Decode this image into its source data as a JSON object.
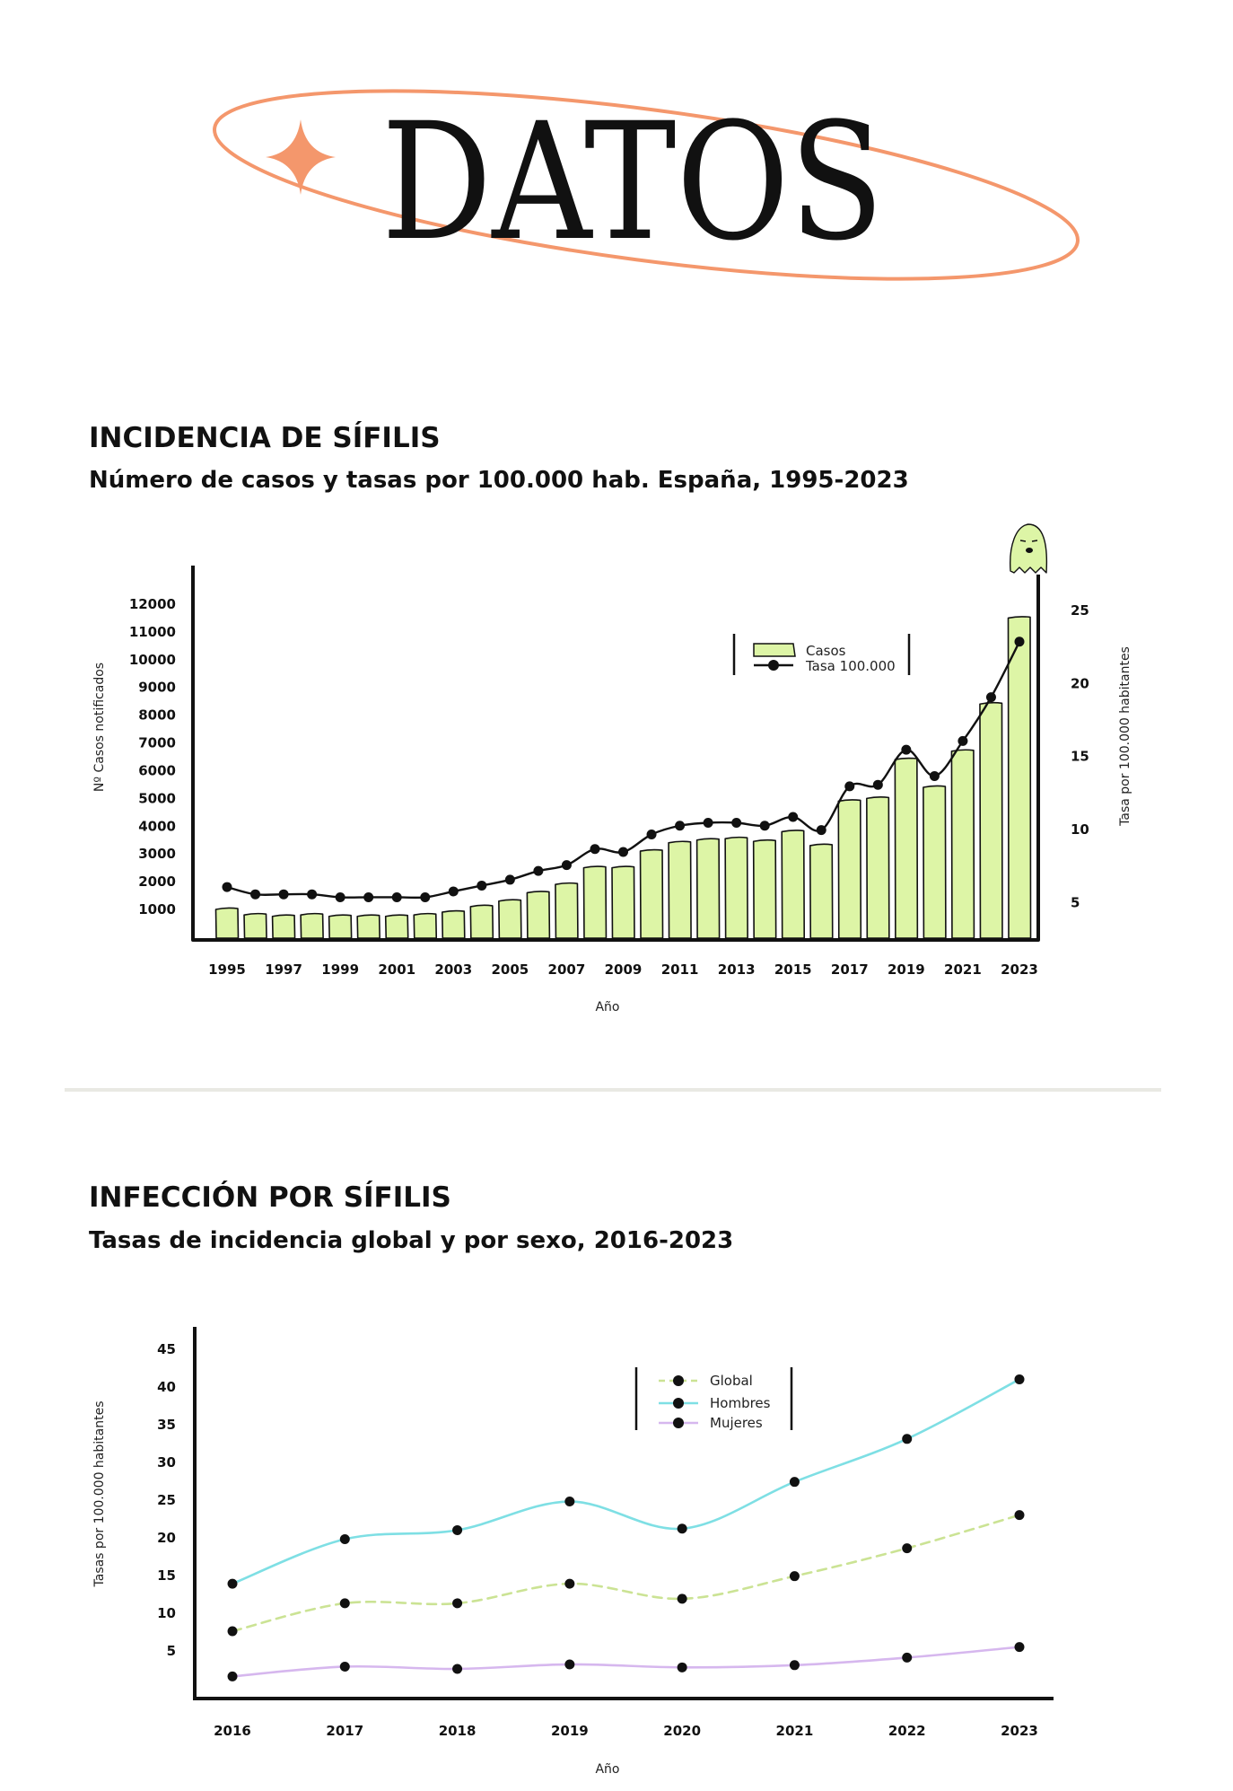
{
  "hero": {
    "title": "DATOS",
    "ring_color": "#F4976C",
    "star_color": "#F4976C"
  },
  "section1": {
    "title": "INCIDENCIA DE SÍFILIS",
    "subtitle": "Número de casos y tasas por 100.000 hab. España, 1995-2023"
  },
  "section2": {
    "title": "INFECCIÓN POR SÍFILIS",
    "subtitle": "Tasas de incidencia global y por sexo, 2016-2023"
  },
  "chart_data": [
    {
      "type": "bar",
      "categories": [
        "1995",
        "1996",
        "1997",
        "1998",
        "1999",
        "2000",
        "2001",
        "2002",
        "2003",
        "2004",
        "2005",
        "2006",
        "2007",
        "2008",
        "2009",
        "2010",
        "2011",
        "2012",
        "2013",
        "2014",
        "2015",
        "2016",
        "2017",
        "2018",
        "2019",
        "2020",
        "2021",
        "2022",
        "2023"
      ],
      "x_tick_labels": [
        "1995",
        "1997",
        "1999",
        "2001",
        "2003",
        "2005",
        "2007",
        "2009",
        "2011",
        "2013",
        "2015",
        "2017",
        "2019",
        "2021",
        "2023"
      ],
      "series": [
        {
          "name": "Casos",
          "type": "bar",
          "axis": "left",
          "color": "#DDF5A6",
          "values": [
            1000,
            800,
            750,
            800,
            750,
            750,
            750,
            800,
            900,
            1100,
            1300,
            1600,
            1900,
            2500,
            2500,
            3100,
            3400,
            3500,
            3550,
            3450,
            3800,
            3300,
            4900,
            5000,
            6400,
            5400,
            6700,
            8400,
            11500
          ]
        },
        {
          "name": "Tasa 100.000",
          "type": "line",
          "axis": "right",
          "color": "#111111",
          "values": [
            6.0,
            5.5,
            5.5,
            5.5,
            5.3,
            5.3,
            5.3,
            5.3,
            5.7,
            6.1,
            6.5,
            7.1,
            7.5,
            8.6,
            8.4,
            9.6,
            10.2,
            10.4,
            10.4,
            10.2,
            10.8,
            9.9,
            12.9,
            13.0,
            15.4,
            13.6,
            16.0,
            19.0,
            22.8
          ]
        }
      ],
      "y_left": {
        "label": "Nº Casos notificados",
        "min": 0,
        "max": 12000,
        "ticks": [
          1000,
          2000,
          3000,
          4000,
          5000,
          6000,
          7000,
          8000,
          9000,
          10000,
          11000,
          12000
        ]
      },
      "y_right": {
        "label": "Tasa por 100.000 habitantes",
        "min": 2.5,
        "max": 25,
        "ticks": [
          5,
          10,
          15,
          20,
          25
        ]
      },
      "xlabel": "Año",
      "legend": [
        "Casos",
        "Tasa 100.000"
      ],
      "legend_position": "top-right",
      "grid": false,
      "annotation": "ghost-icon"
    },
    {
      "type": "line",
      "x": [
        "2016",
        "2017",
        "2018",
        "2019",
        "2020",
        "2021",
        "2022",
        "2023"
      ],
      "series": [
        {
          "name": "Global",
          "color": "#CBE394",
          "style": "dashed",
          "values": [
            7.5,
            11.2,
            11.2,
            13.8,
            11.8,
            14.8,
            18.5,
            22.9
          ]
        },
        {
          "name": "Hombres",
          "color": "#7EDFE4",
          "style": "solid",
          "values": [
            13.8,
            19.7,
            20.9,
            24.7,
            21.1,
            27.3,
            33.0,
            40.9
          ]
        },
        {
          "name": "Mujeres",
          "color": "#D6B7EE",
          "style": "solid",
          "values": [
            1.5,
            2.8,
            2.5,
            3.1,
            2.7,
            3.0,
            4.0,
            5.4
          ]
        }
      ],
      "y": {
        "label": "Tasas por 100.000 habitantes",
        "min": 0,
        "max": 45,
        "ticks": [
          5,
          10,
          15,
          20,
          25,
          30,
          35,
          40,
          45
        ]
      },
      "xlabel": "Año",
      "legend": [
        "Global",
        "Hombres",
        "Mujeres"
      ],
      "legend_position": "top-center",
      "grid": false
    }
  ]
}
